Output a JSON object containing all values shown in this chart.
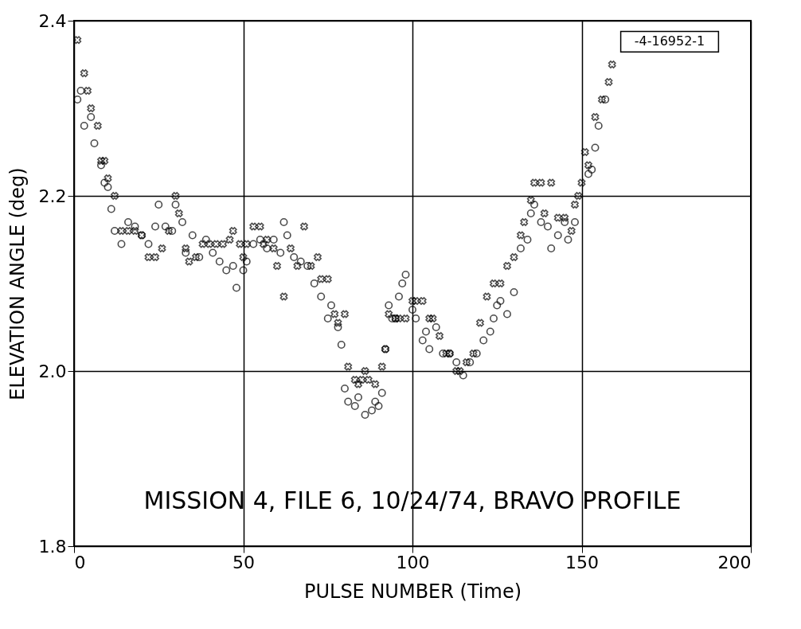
{
  "chart_data": {
    "type": "scatter",
    "xlabel": "PULSE NUMBER (Time)",
    "ylabel": "ELEVATION ANGLE  (deg)",
    "xlim": [
      0,
      200
    ],
    "xticks": [
      0,
      50,
      100,
      150,
      200
    ],
    "ylim": [
      1.8,
      2.4
    ],
    "yticks": [
      {
        "value": 1.8,
        "label": "1.8"
      },
      {
        "value": 2.0,
        "label": "2.0"
      },
      {
        "value": 2.2,
        "label": "2.2"
      },
      {
        "value": 2.4,
        "label": "2.4"
      }
    ],
    "grid": true,
    "annotations": [
      "MISSION 4, FILE 6, 10/24/74, BRAVO PROFILE",
      "-4-16952-1"
    ],
    "series": [
      {
        "color": "#000000",
        "marker": "cross",
        "x": [
          1,
          3,
          4,
          5,
          7,
          8,
          9,
          10,
          12,
          14,
          16,
          18,
          20,
          22,
          24,
          26,
          28,
          30,
          31,
          33,
          34,
          36,
          38,
          40,
          42,
          44,
          46,
          47,
          49,
          50,
          51,
          53,
          55,
          56,
          57,
          59,
          60,
          62,
          64,
          66,
          68,
          70,
          72,
          73,
          75,
          77,
          78,
          80,
          81,
          83,
          84,
          85,
          86,
          87,
          89,
          91,
          92,
          93,
          95,
          96,
          98,
          100,
          101,
          103,
          105,
          106,
          108,
          110,
          111,
          113,
          114,
          116,
          118,
          120,
          122,
          124,
          126,
          128,
          130,
          132,
          133,
          135,
          136,
          138,
          139,
          141,
          143,
          145,
          147,
          148,
          149,
          150,
          151,
          152,
          154,
          156,
          158,
          159
        ],
        "values": [
          2.378,
          2.34,
          2.32,
          2.3,
          2.28,
          2.24,
          2.24,
          2.22,
          2.2,
          2.16,
          2.16,
          2.16,
          2.155,
          2.13,
          2.13,
          2.14,
          2.16,
          2.2,
          2.18,
          2.14,
          2.125,
          2.13,
          2.145,
          2.145,
          2.145,
          2.145,
          2.15,
          2.16,
          2.145,
          2.13,
          2.145,
          2.165,
          2.165,
          2.145,
          2.15,
          2.14,
          2.12,
          2.085,
          2.14,
          2.12,
          2.165,
          2.12,
          2.13,
          2.105,
          2.105,
          2.065,
          2.055,
          2.065,
          2.005,
          1.99,
          1.985,
          1.99,
          2.0,
          1.99,
          1.985,
          2.005,
          2.025,
          2.065,
          2.06,
          2.06,
          2.06,
          2.08,
          2.08,
          2.08,
          2.06,
          2.06,
          2.04,
          2.02,
          2.02,
          2.0,
          2.0,
          2.01,
          2.02,
          2.055,
          2.085,
          2.1,
          2.1,
          2.12,
          2.13,
          2.155,
          2.17,
          2.195,
          2.215,
          2.215,
          2.18,
          2.215,
          2.175,
          2.175,
          2.16,
          2.19,
          2.2,
          2.215,
          2.25,
          2.235,
          2.29,
          2.31,
          2.33,
          2.35
        ]
      },
      {
        "color": "#000000",
        "marker": "circle",
        "x": [
          1,
          2,
          3,
          5,
          6,
          8,
          9,
          10,
          11,
          12,
          14,
          16,
          18,
          20,
          22,
          24,
          25,
          27,
          29,
          30,
          32,
          33,
          35,
          37,
          39,
          41,
          43,
          45,
          47,
          48,
          50,
          51,
          53,
          55,
          57,
          59,
          61,
          62,
          63,
          65,
          67,
          69,
          71,
          73,
          75,
          76,
          78,
          79,
          80,
          81,
          83,
          84,
          86,
          88,
          89,
          90,
          91,
          92,
          93,
          94,
          95,
          96,
          97,
          98,
          100,
          101,
          103,
          104,
          105,
          107,
          109,
          111,
          113,
          115,
          117,
          119,
          121,
          123,
          124,
          125,
          126,
          128,
          130,
          132,
          134,
          135,
          136,
          138,
          140,
          141,
          143,
          145,
          146,
          148,
          152,
          153,
          154,
          155,
          157
        ],
        "values": [
          2.31,
          2.32,
          2.28,
          2.29,
          2.26,
          2.235,
          2.215,
          2.21,
          2.185,
          2.16,
          2.145,
          2.17,
          2.165,
          2.155,
          2.145,
          2.165,
          2.19,
          2.165,
          2.16,
          2.19,
          2.17,
          2.135,
          2.155,
          2.13,
          2.15,
          2.135,
          2.125,
          2.115,
          2.12,
          2.095,
          2.115,
          2.125,
          2.145,
          2.15,
          2.14,
          2.15,
          2.135,
          2.17,
          2.155,
          2.13,
          2.125,
          2.12,
          2.1,
          2.085,
          2.06,
          2.075,
          2.05,
          2.03,
          1.98,
          1.965,
          1.96,
          1.97,
          1.95,
          1.955,
          1.965,
          1.96,
          1.975,
          2.025,
          2.075,
          2.06,
          2.06,
          2.085,
          2.1,
          2.11,
          2.07,
          2.06,
          2.035,
          2.045,
          2.025,
          2.05,
          2.02,
          2.02,
          2.01,
          1.995,
          2.01,
          2.02,
          2.035,
          2.045,
          2.06,
          2.075,
          2.08,
          2.065,
          2.09,
          2.14,
          2.15,
          2.18,
          2.19,
          2.17,
          2.165,
          2.14,
          2.155,
          2.17,
          2.15,
          2.17,
          2.225,
          2.23,
          2.255,
          2.28,
          2.31
        ]
      }
    ]
  }
}
